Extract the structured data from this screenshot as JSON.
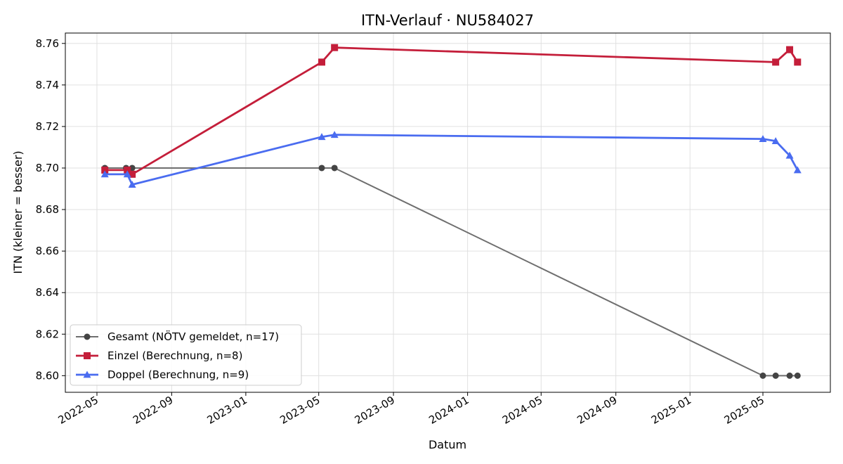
{
  "chart_data": {
    "type": "line",
    "title": "ITN-Verlauf · NU584027",
    "xlabel": "Datum",
    "ylabel": "ITN  (kleiner = besser)",
    "xlim": [
      "2022-03-10",
      "2025-08-20"
    ],
    "ylim": [
      8.592,
      8.765
    ],
    "x_ticks": [
      "2022-05",
      "2022-09",
      "2023-01",
      "2023-05",
      "2023-09",
      "2024-01",
      "2024-05",
      "2024-09",
      "2025-01",
      "2025-05"
    ],
    "y_ticks": [
      "8.60",
      "8.62",
      "8.64",
      "8.66",
      "8.68",
      "8.70",
      "8.72",
      "8.74",
      "8.76"
    ],
    "grid": true,
    "legend_position": "lower-left",
    "series": [
      {
        "name": "Gesamt (NÖTV gemeldet, n=17)",
        "color": "#6e6e6e",
        "marker": "circle",
        "points": [
          {
            "x": "2022-05-14",
            "y": 8.7
          },
          {
            "x": "2022-06-18",
            "y": 8.7
          },
          {
            "x": "2022-06-28",
            "y": 8.7
          },
          {
            "x": "2023-05-06",
            "y": 8.7
          },
          {
            "x": "2023-05-27",
            "y": 8.7
          },
          {
            "x": "2025-05-01",
            "y": 8.6
          },
          {
            "x": "2025-05-22",
            "y": 8.6
          },
          {
            "x": "2025-06-14",
            "y": 8.6
          },
          {
            "x": "2025-06-27",
            "y": 8.6
          }
        ]
      },
      {
        "name": "Einzel (Berechnung, n=8)",
        "color": "#c41e3a",
        "marker": "square",
        "points": [
          {
            "x": "2022-05-14",
            "y": 8.699
          },
          {
            "x": "2022-06-20",
            "y": 8.699
          },
          {
            "x": "2022-06-28",
            "y": 8.697
          },
          {
            "x": "2023-05-06",
            "y": 8.751
          },
          {
            "x": "2023-05-27",
            "y": 8.758
          },
          {
            "x": "2025-05-22",
            "y": 8.751
          },
          {
            "x": "2025-06-14",
            "y": 8.757
          },
          {
            "x": "2025-06-27",
            "y": 8.751
          }
        ]
      },
      {
        "name": "Doppel (Berechnung, n=9)",
        "color": "#4a6cf0",
        "marker": "triangle",
        "points": [
          {
            "x": "2022-05-14",
            "y": 8.697
          },
          {
            "x": "2022-06-20",
            "y": 8.697
          },
          {
            "x": "2022-06-28",
            "y": 8.692
          },
          {
            "x": "2023-05-06",
            "y": 8.715
          },
          {
            "x": "2023-05-27",
            "y": 8.716
          },
          {
            "x": "2025-05-01",
            "y": 8.714
          },
          {
            "x": "2025-05-22",
            "y": 8.713
          },
          {
            "x": "2025-06-14",
            "y": 8.706
          },
          {
            "x": "2025-06-27",
            "y": 8.699
          }
        ]
      }
    ]
  }
}
